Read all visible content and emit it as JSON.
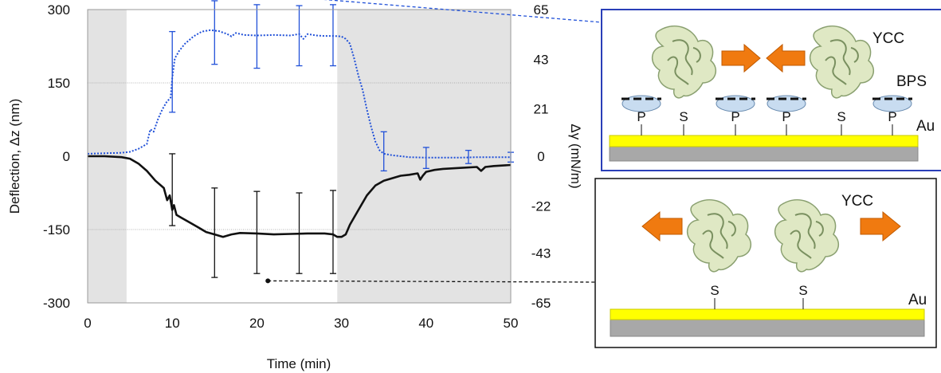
{
  "chart_data": {
    "type": "line",
    "xlabel": "Time (min)",
    "ylabel_left": "Deflection, Δz (nm)",
    "ylabel_right": "Δγ (mN/m)",
    "xlim": [
      0,
      50
    ],
    "ylim_left": [
      -300,
      300
    ],
    "ylim_right": [
      -65,
      65
    ],
    "x_ticks": [
      "0",
      "10",
      "20",
      "30",
      "40",
      "50"
    ],
    "y_left_ticks": [
      "300",
      "150",
      "0",
      "-150",
      "-300"
    ],
    "y_right_ticks": [
      "65",
      "43",
      "21",
      "0",
      "-22",
      "-43",
      "-65"
    ],
    "shaded_regions": [
      [
        0,
        4.6
      ],
      [
        29.5,
        50
      ]
    ],
    "gridlines_y": [
      300,
      150,
      -150,
      -300
    ],
    "colors": {
      "blue_series": "#2050d8",
      "black_series": "#111111",
      "shade": "#e3e3e3",
      "gold": "#ffff00",
      "substrate_gray": "#a8a8a8",
      "arrow_orange": "#f07a10",
      "protein_green": "#dfe8c4",
      "bps_blue": "#c8dcf0"
    },
    "series": [
      {
        "line_style": "dotted",
        "color": "#2050d8",
        "x": [
          0,
          2,
          4,
          5,
          6,
          7,
          7.4,
          7.8,
          8.3,
          8.8,
          9.3,
          9.8,
          10,
          10.3,
          10.8,
          11.5,
          12.5,
          13.5,
          14.5,
          15.5,
          16.5,
          17,
          17.5,
          18.5,
          20,
          22,
          24,
          25,
          25.5,
          26,
          27,
          28,
          29,
          30,
          30.5,
          31,
          31.5,
          32,
          32.5,
          33,
          33.5,
          34,
          34.5,
          35,
          36,
          37,
          38,
          40,
          42,
          44,
          46,
          48,
          50
        ],
        "y": [
          5,
          6,
          7,
          9,
          15,
          25,
          55,
          50,
          75,
          95,
          110,
          120,
          160,
          200,
          215,
          230,
          245,
          255,
          258,
          256,
          250,
          245,
          252,
          248,
          247,
          248,
          247,
          250,
          240,
          250,
          247,
          246,
          246,
          245,
          240,
          230,
          200,
          165,
          135,
          95,
          60,
          30,
          12,
          5,
          2,
          0,
          -2,
          -3,
          -3,
          -3,
          -2,
          -2,
          -2
        ]
      },
      {
        "line_style": "solid",
        "color": "#111111",
        "x": [
          0,
          2,
          4,
          5,
          6,
          7,
          8,
          9,
          9.4,
          9.7,
          10,
          10.2,
          10.5,
          11,
          12,
          13,
          14,
          15,
          16,
          17,
          18,
          20,
          22,
          24,
          26,
          28,
          29,
          29.5,
          30,
          30.5,
          31,
          32,
          33,
          34,
          35,
          36,
          37,
          38,
          39,
          39.3,
          39.6,
          40,
          41,
          42,
          44,
          46,
          46.5,
          47,
          48,
          50
        ],
        "y": [
          0,
          0,
          -2,
          -5,
          -15,
          -30,
          -50,
          -65,
          -90,
          -80,
          -110,
          -100,
          -120,
          -125,
          -135,
          -145,
          -155,
          -160,
          -165,
          -160,
          -157,
          -158,
          -160,
          -159,
          -158,
          -158,
          -160,
          -165,
          -165,
          -160,
          -140,
          -110,
          -80,
          -60,
          -50,
          -45,
          -40,
          -38,
          -35,
          -48,
          -40,
          -32,
          -28,
          -26,
          -24,
          -22,
          -30,
          -22,
          -20,
          -18
        ]
      }
    ],
    "error_bars": [
      {
        "color": "#2050d8",
        "points": [
          {
            "x": 10,
            "y": 175,
            "lo": 90,
            "hi": 255
          },
          {
            "x": 15,
            "y": 252,
            "lo": 188,
            "hi": 318
          },
          {
            "x": 20,
            "y": 250,
            "lo": 180,
            "hi": 310
          },
          {
            "x": 25,
            "y": 248,
            "lo": 185,
            "hi": 308
          },
          {
            "x": 29,
            "y": 248,
            "lo": 185,
            "hi": 310
          },
          {
            "x": 35,
            "y": 10,
            "lo": -30,
            "hi": 50
          },
          {
            "x": 40,
            "y": -3,
            "lo": -25,
            "hi": 18
          },
          {
            "x": 45,
            "y": -3,
            "lo": -15,
            "hi": 12
          },
          {
            "x": 50,
            "y": -2,
            "lo": -12,
            "hi": 8
          }
        ]
      },
      {
        "color": "#111111",
        "points": [
          {
            "x": 10,
            "y": -70,
            "lo": -142,
            "hi": 5
          },
          {
            "x": 15,
            "y": -158,
            "lo": -248,
            "hi": -65
          },
          {
            "x": 20,
            "y": -158,
            "lo": -240,
            "hi": -72
          },
          {
            "x": 25,
            "y": -158,
            "lo": -240,
            "hi": -75
          },
          {
            "x": 29,
            "y": -158,
            "lo": -240,
            "hi": -70
          }
        ]
      }
    ],
    "callouts": [
      {
        "color": "#2050d8",
        "x": 21.3,
        "y": 330,
        "target": "top-panel"
      },
      {
        "color": "#111111",
        "x": 21.3,
        "y": -255,
        "target": "bottom-panel"
      }
    ]
  },
  "panels": {
    "top": {
      "border_color": "#2a3fb8",
      "protein_label": "YCC",
      "bps_label": "BPS",
      "substrate_label": "Au",
      "surface_labels": [
        "P",
        "S",
        "P",
        "P",
        "S",
        "P"
      ]
    },
    "bottom": {
      "border_color": "#111111",
      "protein_label": "YCC",
      "substrate_label": "Au",
      "surface_labels": [
        "S",
        "S"
      ]
    }
  }
}
